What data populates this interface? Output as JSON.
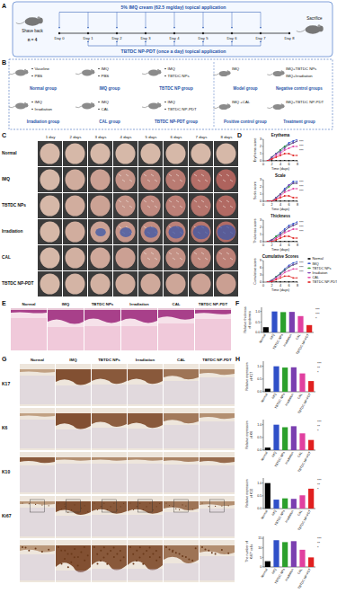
{
  "panel_labels": [
    "A",
    "B",
    "C",
    "D",
    "E",
    "F",
    "G",
    "H"
  ],
  "schematic": {
    "top_bar": "5% IMQ cream (62.5 mg/day) topical application",
    "bottom_bar": "TBTDC NP-PDT (once a day) topical application",
    "left": [
      "Shave back",
      "n = 4"
    ],
    "right": "Sacrifice",
    "days": [
      "Day 0",
      "Day 1",
      "Day 2",
      "Day 3",
      "Day 4",
      "Day 5",
      "Day 6",
      "Day 7",
      "Day 8"
    ]
  },
  "groups": {
    "items": [
      {
        "name": "Normal group",
        "lines": [
          "Vaseline",
          "PBS"
        ]
      },
      {
        "name": "IMQ group",
        "lines": [
          "IMQ",
          "PBS"
        ]
      },
      {
        "name": "TBTDC NP group",
        "lines": [
          "IMQ",
          "TBTDC NPs"
        ]
      },
      {
        "name": "Irradiation group",
        "lines": [
          "IMQ",
          "Irradiation"
        ]
      },
      {
        "name": "CAL group",
        "lines": [
          "IMQ",
          "CAL"
        ]
      },
      {
        "name": "TBTDC NP-PDT group",
        "lines": [
          "IMQ",
          "TBTDC NP-PDT"
        ]
      }
    ],
    "right": [
      {
        "lines": [
          "IMQ"
        ],
        "label": "Model group"
      },
      {
        "lines": [
          "IMQ+TBTDC NPs",
          "IMQ+Irradiation"
        ],
        "label": "Negative control groups"
      },
      {
        "lines": [
          "IMQ +CAL"
        ],
        "label": "Positive control group"
      },
      {
        "lines": [
          "IMQ+TBTDC NP-PDT"
        ],
        "label": "Treatment group"
      }
    ]
  },
  "photos": {
    "columns": [
      "1 day",
      "2 days",
      "3 days",
      "4 days",
      "5 days",
      "6 days",
      "7 days",
      "8 days"
    ],
    "rows": [
      "Normal",
      "IMQ",
      "TBTDC NPs",
      "Irradiation",
      "CAL",
      "TBTDC NP-PDT"
    ]
  },
  "histology": {
    "columns": [
      "Normal",
      "IMQ",
      "TBTDC NPs",
      "Irradiation",
      "CAL",
      "TBTDC NP-PDT"
    ]
  },
  "ihc": {
    "columns": [
      "Normal",
      "IMQ",
      "TBTDC NPs",
      "Irradiation",
      "CAL",
      "TBTDC NP-PDT"
    ],
    "rows": [
      "K17",
      "K6",
      "K10",
      "Ki67"
    ]
  },
  "chart_data": [
    {
      "type": "line",
      "title": "Erythema",
      "ylabel": "Erythema score",
      "xlabel": "Time (days)",
      "marker": "circle",
      "x": [
        1,
        2,
        3,
        4,
        5,
        6,
        7,
        8
      ],
      "xlim": [
        0,
        8
      ],
      "xticks": [
        0,
        2,
        4,
        6,
        8
      ],
      "ylim": [
        0,
        3
      ],
      "yticks": [
        0,
        1,
        2,
        3
      ],
      "series": [
        {
          "color": "#000000",
          "values": [
            0,
            0,
            0,
            0,
            0,
            0,
            0,
            0
          ]
        },
        {
          "color": "#3050c8",
          "values": [
            0,
            0.5,
            1,
            1.5,
            2,
            2.5,
            2.75,
            3
          ]
        },
        {
          "color": "#2ca02c",
          "values": [
            0,
            0.5,
            1,
            1.5,
            2,
            2.25,
            2.5,
            2.75
          ]
        },
        {
          "color": "#7b3fb0",
          "values": [
            0,
            0.5,
            1,
            1.25,
            1.75,
            2.25,
            2.5,
            2.75
          ]
        },
        {
          "color": "#e040a0",
          "values": [
            0,
            0.25,
            0.75,
            1,
            1.5,
            1.75,
            2,
            2
          ]
        },
        {
          "color": "#e02020",
          "values": [
            0,
            0.25,
            0.5,
            0.75,
            1,
            1,
            0.75,
            0.75
          ]
        }
      ],
      "annotations": [
        "***",
        "***",
        "***"
      ]
    },
    {
      "type": "line",
      "title": "Scale",
      "ylabel": "Scale score",
      "xlabel": "Time (days)",
      "marker": "circle",
      "x": [
        1,
        2,
        3,
        4,
        5,
        6,
        7,
        8
      ],
      "xlim": [
        0,
        8
      ],
      "xticks": [
        0,
        2,
        4,
        6,
        8
      ],
      "ylim": [
        0,
        3
      ],
      "yticks": [
        0,
        1,
        2,
        3
      ],
      "series": [
        {
          "color": "#000000",
          "values": [
            0,
            0,
            0,
            0,
            0,
            0,
            0,
            0
          ]
        },
        {
          "color": "#3050c8",
          "values": [
            0,
            0,
            0.5,
            1,
            1.75,
            2.25,
            2.75,
            2.75
          ]
        },
        {
          "color": "#2ca02c",
          "values": [
            0,
            0,
            0.5,
            1,
            1.5,
            2,
            2.5,
            2.5
          ]
        },
        {
          "color": "#7b3fb0",
          "values": [
            0,
            0,
            0.5,
            1,
            1.5,
            2.25,
            2.5,
            2.5
          ]
        },
        {
          "color": "#e040a0",
          "values": [
            0,
            0,
            0.25,
            0.75,
            1.25,
            1.5,
            1.75,
            1.75
          ]
        },
        {
          "color": "#e02020",
          "values": [
            0,
            0,
            0.25,
            0.5,
            0.75,
            0.75,
            0.5,
            0.5
          ]
        }
      ],
      "annotations": [
        "***",
        "***",
        "***"
      ]
    },
    {
      "type": "line",
      "title": "Thickness",
      "ylabel": "Thickness score",
      "xlabel": "Time (days)",
      "marker": "circle",
      "x": [
        1,
        2,
        3,
        4,
        5,
        6,
        7,
        8
      ],
      "xlim": [
        0,
        8
      ],
      "xticks": [
        0,
        2,
        4,
        6,
        8
      ],
      "ylim": [
        0,
        3
      ],
      "yticks": [
        0,
        1,
        2,
        3
      ],
      "series": [
        {
          "color": "#000000",
          "values": [
            0,
            0,
            0,
            0,
            0,
            0,
            0,
            0
          ]
        },
        {
          "color": "#3050c8",
          "values": [
            0,
            0.25,
            0.75,
            1.25,
            1.75,
            2.25,
            2.5,
            2.75
          ]
        },
        {
          "color": "#2ca02c",
          "values": [
            0,
            0.25,
            0.75,
            1,
            1.5,
            2,
            2.25,
            2.5
          ]
        },
        {
          "color": "#7b3fb0",
          "values": [
            0,
            0.25,
            0.5,
            1,
            1.5,
            2,
            2.25,
            2.5
          ]
        },
        {
          "color": "#e040a0",
          "values": [
            0,
            0,
            0.5,
            0.75,
            1.25,
            1.5,
            1.75,
            1.75
          ]
        },
        {
          "color": "#e02020",
          "values": [
            0,
            0,
            0.25,
            0.5,
            0.75,
            0.75,
            0.5,
            0.5
          ]
        }
      ],
      "annotations": [
        "***",
        "***",
        "***"
      ]
    },
    {
      "type": "line",
      "title": "Cumulative Scores",
      "ylabel": "Cumulative score",
      "xlabel": "Time (days)",
      "marker": "circle",
      "legend": "right",
      "x": [
        1,
        2,
        3,
        4,
        5,
        6,
        7,
        8
      ],
      "xlim": [
        0,
        8
      ],
      "xticks": [
        0,
        2,
        4,
        6,
        8
      ],
      "ylim": [
        0,
        9
      ],
      "yticks": [
        0,
        3,
        6,
        9
      ],
      "series": [
        {
          "name": "Normal",
          "color": "#000000",
          "values": [
            0,
            0,
            0,
            0,
            0,
            0,
            0,
            0
          ]
        },
        {
          "name": "IMQ",
          "color": "#3050c8",
          "values": [
            0,
            0.75,
            2.25,
            3.75,
            5.5,
            7,
            8,
            8.5
          ]
        },
        {
          "name": "TBTDC NPs",
          "color": "#2ca02c",
          "values": [
            0,
            0.75,
            2.25,
            3.5,
            5,
            6.25,
            7.25,
            7.75
          ]
        },
        {
          "name": "Irradiation",
          "color": "#7b3fb0",
          "values": [
            0,
            0.75,
            2,
            3.25,
            4.75,
            6.5,
            7.25,
            7.75
          ]
        },
        {
          "name": "CAL",
          "color": "#e040a0",
          "values": [
            0,
            0.25,
            1.5,
            2.5,
            4,
            4.75,
            5.5,
            5.5
          ]
        },
        {
          "name": "TBTDC NP-PDT",
          "color": "#e02020",
          "values": [
            0,
            0.25,
            1,
            1.75,
            2.5,
            2.5,
            1.75,
            1.75
          ]
        }
      ],
      "annotations": [
        "***",
        "***",
        "***"
      ]
    },
    {
      "type": "bar",
      "ylabel": [
        "Relative thickness",
        "of epidermis"
      ],
      "categories": [
        "Normal",
        "IMQ",
        "TBTDC NPs",
        "Irradiation",
        "CAL",
        "TBTDC NP-PDT"
      ],
      "values": [
        0.25,
        1.0,
        0.97,
        0.98,
        0.78,
        0.35
      ],
      "colors": [
        "#000000",
        "#3050c8",
        "#2ca02c",
        "#7b3fb0",
        "#e040a0",
        "#e02020"
      ],
      "ylim": [
        0,
        1.2
      ],
      "yticks": [
        {
          "value": 0,
          "label": "0.0"
        },
        {
          "value": 0.5,
          "label": "0.5"
        },
        {
          "value": 1,
          "label": "1.0"
        }
      ],
      "annotations": [
        "***",
        "***",
        "*"
      ]
    },
    {
      "type": "bar",
      "ylabel": [
        "Relative expression",
        "of K17"
      ],
      "categories": [
        "Normal",
        "IMQ",
        "TBTDC NPs",
        "Irradiation",
        "CAL",
        "TBTDC NP-PDT"
      ],
      "values": [
        0.12,
        1.0,
        0.95,
        0.96,
        0.72,
        0.42
      ],
      "colors": [
        "#000000",
        "#3050c8",
        "#2ca02c",
        "#7b3fb0",
        "#e040a0",
        "#e02020"
      ],
      "ylim": [
        0,
        1.2
      ],
      "yticks": [
        {
          "value": 0,
          "label": "0.0"
        },
        {
          "value": 0.5,
          "label": "0.5"
        },
        {
          "value": 1,
          "label": "1.0"
        }
      ],
      "annotations": [
        "***",
        "**",
        "*"
      ]
    },
    {
      "type": "bar",
      "ylabel": [
        "Relative expression",
        "of K6"
      ],
      "categories": [
        "Normal",
        "IMQ",
        "TBTDC NPs",
        "Irradiation",
        "CAL",
        "TBTDC NP-PDT"
      ],
      "values": [
        0.1,
        1.0,
        0.9,
        0.94,
        0.66,
        0.4
      ],
      "colors": [
        "#000000",
        "#3050c8",
        "#2ca02c",
        "#7b3fb0",
        "#e040a0",
        "#e02020"
      ],
      "ylim": [
        0,
        1.2
      ],
      "yticks": [
        {
          "value": 0,
          "label": "0.0"
        },
        {
          "value": 0.5,
          "label": "0.5"
        },
        {
          "value": 1,
          "label": "1.0"
        }
      ],
      "annotations": [
        "***",
        "**",
        "*"
      ]
    },
    {
      "type": "bar",
      "ylabel": [
        "Relative expression",
        "of K10"
      ],
      "categories": [
        "Normal",
        "IMQ",
        "TBTDC NPs",
        "Irradiation",
        "CAL",
        "TBTDC NP-PDT"
      ],
      "values": [
        1.0,
        0.35,
        0.4,
        0.38,
        0.52,
        0.78
      ],
      "colors": [
        "#000000",
        "#3050c8",
        "#2ca02c",
        "#7b3fb0",
        "#e040a0",
        "#e02020"
      ],
      "ylim": [
        0,
        1.2
      ],
      "yticks": [
        {
          "value": 0,
          "label": "0.0"
        },
        {
          "value": 0.5,
          "label": "0.5"
        },
        {
          "value": 1,
          "label": "1.0"
        }
      ],
      "annotations": [
        "***",
        "**",
        "*"
      ]
    },
    {
      "type": "bar",
      "ylabel": [
        "The number of",
        "Ki67⁺ cells"
      ],
      "categories": [
        "Normal",
        "IMQ",
        "TBTDC NPs",
        "Irradiation",
        "CAL",
        "TBTDC NP-PDT"
      ],
      "values": [
        3,
        14,
        13,
        13.5,
        9,
        5
      ],
      "colors": [
        "#000000",
        "#3050c8",
        "#2ca02c",
        "#7b3fb0",
        "#e040a0",
        "#e02020"
      ],
      "ylim": [
        0,
        16
      ],
      "yticks": [
        0,
        5,
        10,
        15
      ],
      "annotations": [
        "***",
        "**",
        "*"
      ]
    }
  ]
}
